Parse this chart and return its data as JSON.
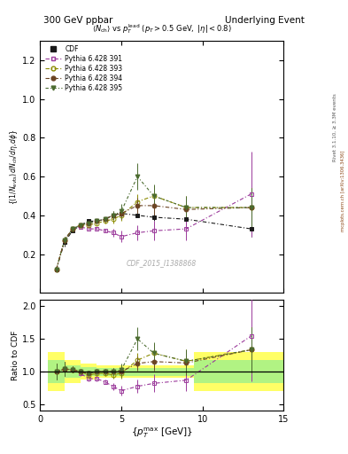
{
  "title_left": "300 GeV ppbar",
  "title_right": "Underlying Event",
  "watermark": "CDF_2015_I1388868",
  "cdf_x": [
    1.0,
    1.5,
    2.0,
    2.5,
    3.0,
    3.5,
    4.0,
    4.5,
    5.0,
    6.0,
    7.0,
    9.0,
    13.0
  ],
  "cdf_y": [
    0.12,
    0.26,
    0.32,
    0.35,
    0.37,
    0.37,
    0.38,
    0.4,
    0.41,
    0.4,
    0.39,
    0.38,
    0.33
  ],
  "cdf_yerr": [
    0.01,
    0.02,
    0.01,
    0.01,
    0.01,
    0.01,
    0.01,
    0.01,
    0.01,
    0.01,
    0.02,
    0.03,
    0.04
  ],
  "p391_x": [
    1.0,
    1.5,
    2.0,
    2.5,
    3.0,
    3.5,
    4.0,
    4.5,
    5.0,
    6.0,
    7.0,
    9.0,
    13.0
  ],
  "p391_y": [
    0.12,
    0.27,
    0.33,
    0.34,
    0.33,
    0.33,
    0.32,
    0.31,
    0.29,
    0.31,
    0.32,
    0.33,
    0.51
  ],
  "p391_yerr": [
    0.01,
    0.02,
    0.01,
    0.01,
    0.01,
    0.01,
    0.01,
    0.02,
    0.03,
    0.04,
    0.05,
    0.06,
    0.22
  ],
  "p393_x": [
    1.0,
    1.5,
    2.0,
    2.5,
    3.0,
    3.5,
    4.0,
    4.5,
    5.0,
    6.0,
    7.0,
    9.0,
    13.0
  ],
  "p393_y": [
    0.12,
    0.27,
    0.33,
    0.35,
    0.35,
    0.36,
    0.37,
    0.38,
    0.4,
    0.47,
    0.5,
    0.44,
    0.44
  ],
  "p393_yerr": [
    0.01,
    0.02,
    0.01,
    0.01,
    0.01,
    0.01,
    0.01,
    0.02,
    0.03,
    0.04,
    0.05,
    0.06,
    0.1
  ],
  "p394_x": [
    1.0,
    1.5,
    2.0,
    2.5,
    3.0,
    3.5,
    4.0,
    4.5,
    5.0,
    6.0,
    7.0,
    9.0,
    13.0
  ],
  "p394_y": [
    0.12,
    0.27,
    0.33,
    0.35,
    0.36,
    0.37,
    0.38,
    0.4,
    0.41,
    0.45,
    0.45,
    0.43,
    0.44
  ],
  "p394_yerr": [
    0.01,
    0.02,
    0.01,
    0.01,
    0.01,
    0.01,
    0.01,
    0.02,
    0.03,
    0.04,
    0.05,
    0.06,
    0.1
  ],
  "p395_x": [
    1.0,
    1.5,
    2.0,
    2.5,
    3.0,
    3.5,
    4.0,
    4.5,
    5.0,
    6.0,
    7.0,
    9.0,
    13.0
  ],
  "p395_y": [
    0.12,
    0.27,
    0.33,
    0.35,
    0.36,
    0.37,
    0.38,
    0.4,
    0.42,
    0.6,
    0.5,
    0.44,
    0.44
  ],
  "p395_yerr": [
    0.01,
    0.02,
    0.01,
    0.01,
    0.01,
    0.01,
    0.01,
    0.02,
    0.04,
    0.07,
    0.06,
    0.06,
    0.1
  ],
  "color_cdf": "#1a1a1a",
  "color_p391": "#9B3A9B",
  "color_p393": "#8B8B00",
  "color_p394": "#6B4423",
  "color_p395": "#4B6B2F",
  "ylim_main": [
    0.0,
    1.3
  ],
  "ylim_ratio": [
    0.4,
    2.1
  ],
  "yticks_main": [
    0.2,
    0.4,
    0.6,
    0.8,
    1.0,
    1.2
  ],
  "yticks_ratio": [
    0.5,
    1.0,
    1.5,
    2.0
  ],
  "xlim": [
    0,
    15
  ],
  "xticks": [
    0,
    5,
    10,
    15
  ],
  "band_x_edges": [
    0.5,
    1.5,
    2.5,
    3.5,
    4.5,
    5.5,
    6.5,
    7.5,
    9.5,
    11.5,
    15.5
  ],
  "yellow_err": [
    0.3,
    0.18,
    0.12,
    0.1,
    0.1,
    0.1,
    0.1,
    0.1,
    0.3,
    0.3,
    0.3
  ],
  "green_err": [
    0.18,
    0.1,
    0.07,
    0.06,
    0.06,
    0.06,
    0.06,
    0.06,
    0.18,
    0.18,
    0.18
  ]
}
